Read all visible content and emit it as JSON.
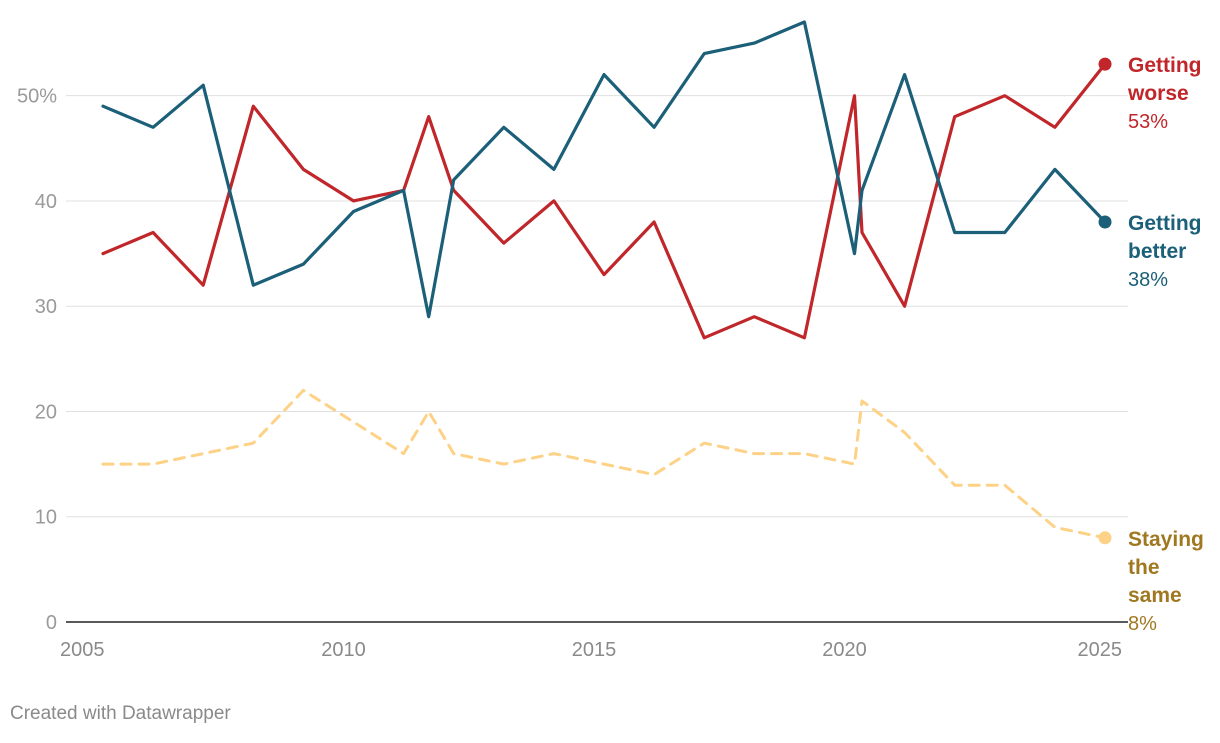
{
  "footer": {
    "credit": "Created with Datawrapper"
  },
  "chart_data": {
    "type": "line",
    "title": "",
    "xlabel": "",
    "ylabel": "",
    "x_ticks": [
      2005,
      2010,
      2015,
      2020,
      2025
    ],
    "y_ticks": [
      0,
      10,
      20,
      30,
      40,
      50
    ],
    "y_tick_labels": [
      "0",
      "10",
      "20",
      "30",
      "40",
      "50%"
    ],
    "xlim": [
      2005,
      2025
    ],
    "ylim": [
      0,
      57
    ],
    "grid": true,
    "legend": "direct labels at right end of lines",
    "series": [
      {
        "key": "worse",
        "name": "Getting worse",
        "label_lines": [
          "Getting",
          "worse"
        ],
        "end_label": "53%",
        "color": "#c0262a",
        "label_color": "#c0262a",
        "dashed": false,
        "points": [
          [
            2005.2,
            35
          ],
          [
            2006.2,
            37
          ],
          [
            2007.2,
            32
          ],
          [
            2008.2,
            49
          ],
          [
            2009.2,
            43
          ],
          [
            2010.2,
            40
          ],
          [
            2011.2,
            41
          ],
          [
            2011.7,
            48
          ],
          [
            2012.2,
            41
          ],
          [
            2013.2,
            36
          ],
          [
            2014.2,
            40
          ],
          [
            2015.2,
            33
          ],
          [
            2016.2,
            38
          ],
          [
            2017.2,
            27
          ],
          [
            2018.2,
            29
          ],
          [
            2019.2,
            27
          ],
          [
            2020.2,
            50
          ],
          [
            2020.35,
            37
          ],
          [
            2021.2,
            30
          ],
          [
            2022.2,
            48
          ],
          [
            2023.2,
            50
          ],
          [
            2024.2,
            47
          ],
          [
            2025.2,
            53
          ]
        ]
      },
      {
        "key": "better",
        "name": "Getting better",
        "label_lines": [
          "Getting",
          "better"
        ],
        "end_label": "38%",
        "color": "#1b5f78",
        "label_color": "#1b5f78",
        "dashed": false,
        "points": [
          [
            2005.2,
            49
          ],
          [
            2006.2,
            47
          ],
          [
            2007.2,
            51
          ],
          [
            2008.2,
            32
          ],
          [
            2009.2,
            34
          ],
          [
            2010.2,
            39
          ],
          [
            2011.2,
            41
          ],
          [
            2011.7,
            29
          ],
          [
            2012.2,
            42
          ],
          [
            2013.2,
            47
          ],
          [
            2014.2,
            43
          ],
          [
            2015.2,
            52
          ],
          [
            2016.2,
            47
          ],
          [
            2017.2,
            54
          ],
          [
            2018.2,
            55
          ],
          [
            2019.2,
            57
          ],
          [
            2020.2,
            35
          ],
          [
            2020.35,
            41
          ],
          [
            2021.2,
            52
          ],
          [
            2022.2,
            37
          ],
          [
            2023.2,
            37
          ],
          [
            2024.2,
            43
          ],
          [
            2025.2,
            38
          ]
        ]
      },
      {
        "key": "same",
        "name": "Staying the same",
        "label_lines": [
          "Staying",
          "the",
          "same"
        ],
        "end_label": "8%",
        "color": "#fdd287",
        "label_color": "#a07820",
        "dashed": true,
        "points": [
          [
            2005.2,
            15
          ],
          [
            2006.2,
            15
          ],
          [
            2007.2,
            16
          ],
          [
            2008.2,
            17
          ],
          [
            2009.2,
            22
          ],
          [
            2010.2,
            19
          ],
          [
            2011.2,
            16
          ],
          [
            2011.7,
            20
          ],
          [
            2012.2,
            16
          ],
          [
            2013.2,
            15
          ],
          [
            2014.2,
            16
          ],
          [
            2015.2,
            15
          ],
          [
            2016.2,
            14
          ],
          [
            2017.2,
            17
          ],
          [
            2018.2,
            16
          ],
          [
            2019.2,
            16
          ],
          [
            2020.2,
            15
          ],
          [
            2020.35,
            21
          ],
          [
            2021.2,
            18
          ],
          [
            2022.2,
            13
          ],
          [
            2023.2,
            13
          ],
          [
            2024.2,
            9
          ],
          [
            2025.2,
            8
          ]
        ]
      }
    ]
  }
}
